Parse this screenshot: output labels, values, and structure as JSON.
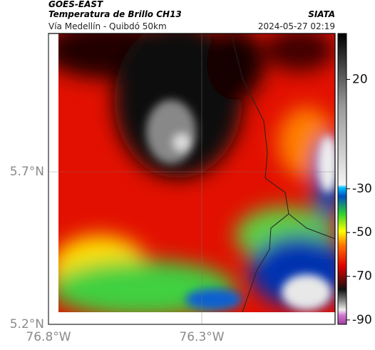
{
  "header": {
    "title": "GOES-EAST",
    "subtitle": "Temperatura de Brillo CH13",
    "route": "Vía Medellín - Quibdó 50km",
    "source": "SIATA",
    "datetime": "2024-05-27 02:19"
  },
  "map": {
    "lat_ticks": [
      {
        "value": 5.2,
        "label": "5.2°N"
      },
      {
        "value": 5.7,
        "label": "5.7°N"
      }
    ],
    "lon_ticks": [
      {
        "value": -76.8,
        "label": "76.8°W"
      },
      {
        "value": -76.3,
        "label": "76.3°W"
      }
    ]
  },
  "colorbar": {
    "range": [
      -92,
      41
    ],
    "ticks": [
      20,
      -30,
      -50,
      -70,
      -90
    ]
  }
}
